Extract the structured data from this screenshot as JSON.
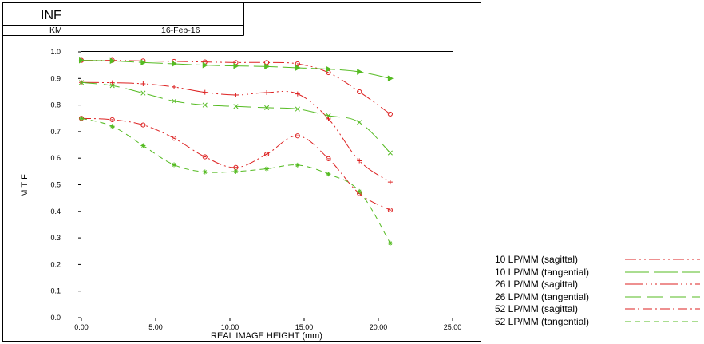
{
  "header": {
    "title": "INF",
    "author": "KM",
    "date": "16-Feb-16"
  },
  "chart_data": {
    "type": "line",
    "title": "",
    "xlabel": "REAL IMAGE HEIGHT (mm)",
    "ylabel": "MTF",
    "xlim": [
      0,
      25
    ],
    "ylim": [
      0,
      1.0
    ],
    "xticks": [
      "0.00",
      "5.00",
      "10.00",
      "15.00",
      "20.00",
      "25.00"
    ],
    "yticks": [
      "0.0",
      "0.1",
      "0.2",
      "0.3",
      "0.4",
      "0.5",
      "0.6",
      "0.7",
      "0.8",
      "0.9",
      "1.0"
    ],
    "grid": false,
    "legend_placement": "bottom-right, outside plot",
    "series": [
      {
        "name": "10 LP/MM (sagittal)",
        "color": "#dd2222",
        "dash": "14 4 2 4 2 4",
        "marker": "circle",
        "x": [
          0,
          2.08,
          4.16,
          6.24,
          8.32,
          10.4,
          12.48,
          14.56,
          16.64,
          18.72,
          20.8
        ],
        "y": [
          0.968,
          0.968,
          0.966,
          0.964,
          0.962,
          0.96,
          0.96,
          0.955,
          0.922,
          0.85,
          0.766
        ]
      },
      {
        "name": "10 LP/MM (tangential)",
        "color": "#55bb22",
        "dash": "30 6",
        "marker": "triangle",
        "x": [
          0,
          2.08,
          4.16,
          6.24,
          8.32,
          10.4,
          12.48,
          14.56,
          16.64,
          18.72,
          20.8
        ],
        "y": [
          0.968,
          0.966,
          0.96,
          0.955,
          0.95,
          0.947,
          0.945,
          0.94,
          0.935,
          0.925,
          0.9
        ]
      },
      {
        "name": "26 LP/MM (sagittal)",
        "color": "#dd2222",
        "dash": "22 4 2 4 2 4 2 4",
        "marker": "plus",
        "x": [
          0,
          2.08,
          4.16,
          6.24,
          8.32,
          10.4,
          12.48,
          14.56,
          16.64,
          18.72,
          20.8
        ],
        "y": [
          0.885,
          0.884,
          0.88,
          0.868,
          0.848,
          0.838,
          0.847,
          0.842,
          0.748,
          0.59,
          0.51
        ]
      },
      {
        "name": "26 LP/MM (tangential)",
        "color": "#55bb22",
        "dash": "20 8",
        "marker": "cross",
        "x": [
          0,
          2.08,
          4.16,
          6.24,
          8.32,
          10.4,
          12.48,
          14.56,
          16.64,
          18.72,
          20.8
        ],
        "y": [
          0.885,
          0.873,
          0.845,
          0.815,
          0.8,
          0.795,
          0.79,
          0.785,
          0.76,
          0.735,
          0.62
        ]
      },
      {
        "name": "52 LP/MM (sagittal)",
        "color": "#dd2222",
        "dash": "12 4 2 4",
        "marker": "diamond-circle",
        "x": [
          0,
          2.08,
          4.16,
          6.24,
          8.32,
          10.4,
          12.48,
          14.56,
          16.64,
          18.72,
          20.8
        ],
        "y": [
          0.75,
          0.745,
          0.725,
          0.675,
          0.605,
          0.565,
          0.615,
          0.684,
          0.598,
          0.467,
          0.405
        ]
      },
      {
        "name": "52 LP/MM (tangential)",
        "color": "#55bb22",
        "dash": "7 5",
        "marker": "asterisk",
        "x": [
          0,
          2.08,
          4.16,
          6.24,
          8.32,
          10.4,
          12.48,
          14.56,
          16.64,
          18.72,
          20.8
        ],
        "y": [
          0.75,
          0.72,
          0.647,
          0.575,
          0.548,
          0.55,
          0.56,
          0.574,
          0.54,
          0.475,
          0.28
        ]
      }
    ]
  }
}
